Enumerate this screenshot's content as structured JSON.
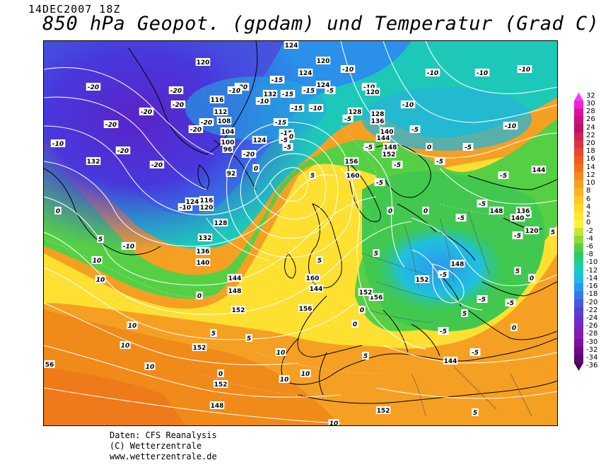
{
  "datestamp": "14DEC2007 18Z",
  "title": "850 hPa Geopot. (gpdam) und  Temperatur (Grad C)",
  "credits": {
    "line1": "Daten: CFS Reanalysis",
    "line2": "(C) Wetterzentrale",
    "line3": "www.wetterzentrale.de"
  },
  "colorbar": {
    "ticks": [
      "32",
      "30",
      "28",
      "26",
      "24",
      "22",
      "20",
      "18",
      "16",
      "14",
      "12",
      "10",
      "8",
      "6",
      "4",
      "2",
      "0",
      "-2",
      "-4",
      "-6",
      "-8",
      "-10",
      "-12",
      "-14",
      "-16",
      "-18",
      "-20",
      "-22",
      "-24",
      "-26",
      "-28",
      "-30",
      "-32",
      "-34",
      "-36"
    ],
    "colors": [
      "#ff33ff",
      "#ee22cc",
      "#dd1199",
      "#cc1177",
      "#bb1166",
      "#cc2255",
      "#dd3344",
      "#ee4433",
      "#f25a1f",
      "#f47018",
      "#f58a1a",
      "#f7a020",
      "#f9b424",
      "#fbc828",
      "#fcd92c",
      "#fde830",
      "#fff23a",
      "#c8e632",
      "#8fdb3a",
      "#55d045",
      "#2ec86a",
      "#1ecf9a",
      "#18c8c8",
      "#20b8e8",
      "#2a98ee",
      "#3a78e8",
      "#4858e0",
      "#5a40d6",
      "#6a30cc",
      "#7a24c0",
      "#8818b0",
      "#7a129a",
      "#6a0c86",
      "#5a0872",
      "#4a045e"
    ]
  },
  "map": {
    "temperature_labels": [
      "-20",
      "-20",
      "-20",
      "-20",
      "-20",
      "-20",
      "-20",
      "-20",
      "-20",
      "-20",
      "-20",
      "-15",
      "-15",
      "-15",
      "-15",
      "-15",
      "-15",
      "-10",
      "-10",
      "-10",
      "-10",
      "-10",
      "-10",
      "-10",
      "-10",
      "-10",
      "-10",
      "-10",
      "-10",
      "-10",
      "-5",
      "-5",
      "-5",
      "-5",
      "-5",
      "-5",
      "-5",
      "-5",
      "-5",
      "-5",
      "-5",
      "-5",
      "-5",
      "-5",
      "-5",
      "-5",
      "-5",
      "-5",
      "-5",
      "0",
      "0",
      "0",
      "0",
      "0",
      "0",
      "0",
      "0",
      "0",
      "0",
      "0",
      "0",
      "0",
      "5",
      "5",
      "5",
      "5",
      "5",
      "5",
      "5",
      "5",
      "10",
      "10",
      "10",
      "10",
      "10",
      "10",
      "10",
      "10",
      "10",
      "5",
      "5",
      "5"
    ],
    "geopotential_labels": [
      "124",
      "120",
      "124",
      "120",
      "124",
      "128",
      "120",
      "132",
      "116",
      "112",
      "108",
      "104",
      "100",
      "96",
      "92",
      "124",
      "132",
      "128",
      "136",
      "140",
      "144",
      "148",
      "152",
      "156",
      "160",
      "116",
      "120",
      "124",
      "128",
      "132",
      "136",
      "140",
      "144",
      "148",
      "152",
      "156",
      "160",
      "152",
      "148",
      "144",
      "144",
      "148",
      "152",
      "156",
      "152",
      "148",
      "144",
      "136",
      "140",
      "120",
      "56",
      "152",
      "152"
    ]
  }
}
